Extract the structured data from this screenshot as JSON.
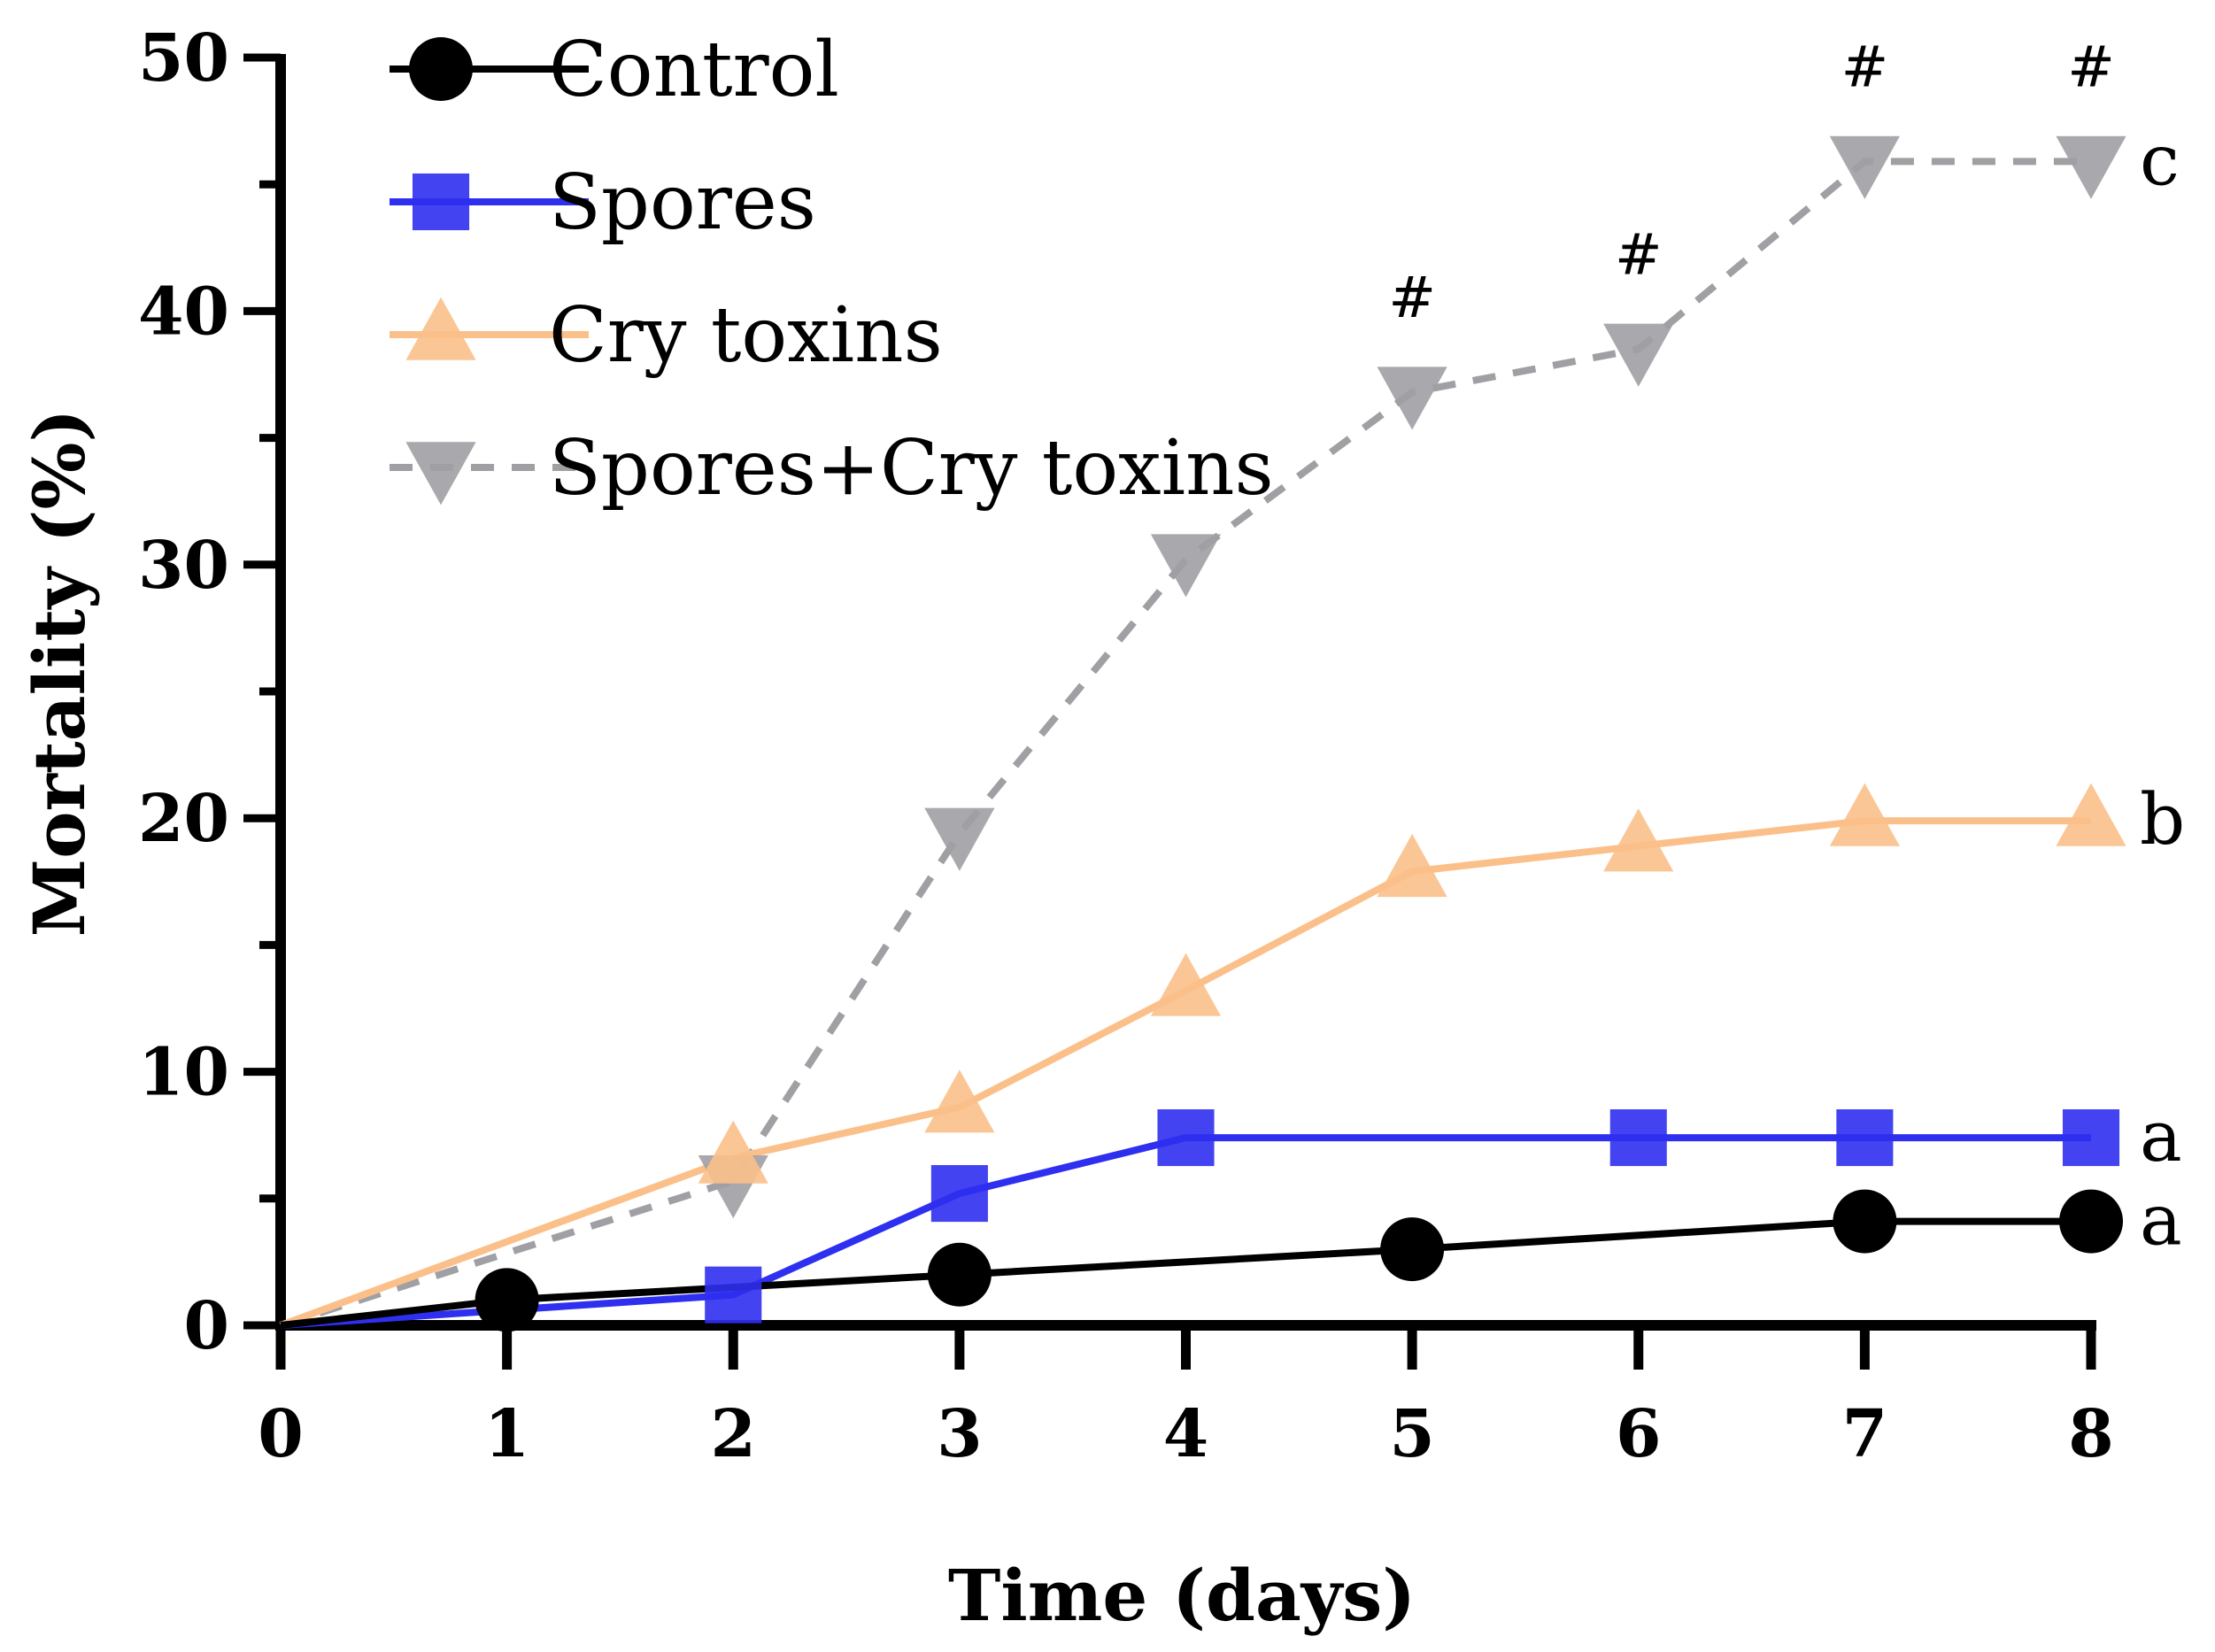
{
  "chart_data": {
    "type": "line",
    "xlabel": "Time (days)",
    "ylabel": "Mortality (%)",
    "xlim": [
      0,
      8
    ],
    "ylim": [
      0,
      50
    ],
    "xticks": [
      0,
      1,
      2,
      3,
      4,
      5,
      6,
      7,
      8
    ],
    "yticks": [
      0,
      10,
      20,
      30,
      40,
      50
    ],
    "grid": false,
    "legend_position": "top-left",
    "series": [
      {
        "name": "Control",
        "color": "#000000",
        "marker": "circle",
        "line_style": "solid",
        "x": [
          0,
          1,
          3,
          5,
          7,
          8
        ],
        "y": [
          0,
          1,
          2,
          3,
          4.1,
          4.1
        ],
        "group_letter": "a"
      },
      {
        "name": "Spores",
        "color": "#2f2ff0",
        "marker": "square",
        "line_style": "solid",
        "x": [
          0,
          2,
          3,
          4,
          6,
          7,
          8
        ],
        "y": [
          0,
          1.2,
          5.2,
          7.4,
          7.4,
          7.4,
          7.4
        ],
        "group_letter": "a"
      },
      {
        "name": "Cry toxins",
        "color": "#fbc08a",
        "marker": "triangle-up",
        "line_style": "solid",
        "x": [
          0,
          2,
          3,
          4,
          5,
          6,
          7,
          8
        ],
        "y": [
          0,
          6.6,
          8.6,
          13.2,
          17.9,
          18.9,
          19.9,
          19.9
        ],
        "group_letter": "b"
      },
      {
        "name": "Spores+Cry toxins",
        "color": "#a0a0a4",
        "marker": "triangle-down",
        "line_style": "dashed",
        "x": [
          0,
          2,
          3,
          4,
          5,
          6,
          7,
          8
        ],
        "y": [
          0,
          5.7,
          19.4,
          30.2,
          36.8,
          38.5,
          45.9,
          45.9
        ],
        "group_letter": "c"
      }
    ],
    "annotations": [
      {
        "text": "#",
        "x": 5,
        "y": 36.8
      },
      {
        "text": "#",
        "x": 6,
        "y": 38.5
      },
      {
        "text": "#",
        "x": 7,
        "y": 45.9
      },
      {
        "text": "#",
        "x": 8,
        "y": 45.9
      }
    ]
  }
}
